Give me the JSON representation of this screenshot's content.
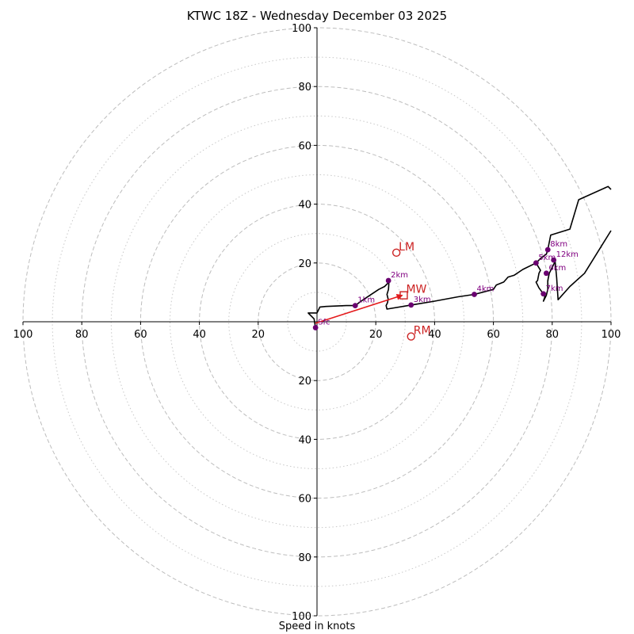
{
  "chart_data": {
    "type": "hodograph",
    "title": "KTWC 18Z - Wednesday December 03 2025",
    "xlabel": "Speed in knots",
    "axis_range": [
      -100,
      100
    ],
    "rings": [
      20,
      40,
      60,
      80,
      100
    ],
    "minor_rings": [
      10,
      30,
      50,
      70,
      90
    ],
    "x_ticks": [
      "100",
      "80",
      "60",
      "40",
      "20",
      "20",
      "40",
      "60",
      "80",
      "100"
    ],
    "y_ticks": [
      "100",
      "80",
      "60",
      "40",
      "20",
      "20",
      "40",
      "60",
      "80",
      "100"
    ],
    "hodograph": [
      [
        -0.5,
        -2
      ],
      [
        -1,
        1
      ],
      [
        -3,
        3
      ],
      [
        -2.5,
        3
      ],
      [
        0,
        3
      ],
      [
        1,
        5
      ],
      [
        3,
        5.2
      ],
      [
        10,
        5.5
      ],
      [
        13,
        5.5
      ],
      [
        15,
        7
      ],
      [
        18,
        9
      ],
      [
        21,
        11
      ],
      [
        23,
        12
      ],
      [
        24,
        13
      ],
      [
        24.5,
        14
      ],
      [
        24.3,
        11
      ],
      [
        23.8,
        9.3
      ],
      [
        24.2,
        7.7
      ],
      [
        24,
        6.5
      ],
      [
        23.5,
        5.5
      ],
      [
        23.8,
        4.3
      ],
      [
        32,
        5.7
      ],
      [
        40,
        7
      ],
      [
        48,
        8.5
      ],
      [
        53.5,
        9.3
      ],
      [
        60,
        11
      ],
      [
        61,
        12.5
      ],
      [
        63.5,
        13.5
      ],
      [
        65,
        15.2
      ],
      [
        67,
        15.8
      ],
      [
        70,
        17.8
      ],
      [
        74.5,
        20
      ],
      [
        76,
        21.5
      ],
      [
        78,
        23
      ],
      [
        78.5,
        24.5
      ],
      [
        79.5,
        29.5
      ],
      [
        86,
        31.5
      ],
      [
        89,
        41.5
      ],
      [
        99,
        46
      ],
      [
        100,
        45
      ]
    ],
    "hodograph_tail": [
      [
        74.5,
        20
      ],
      [
        76,
        17.5
      ],
      [
        75.5,
        16.5
      ],
      [
        75,
        14
      ],
      [
        74.5,
        13.5
      ],
      [
        75.5,
        11.5
      ],
      [
        77,
        9.5
      ],
      [
        77.5,
        8.5
      ],
      [
        77,
        7
      ],
      [
        78,
        9
      ],
      [
        78.5,
        11
      ],
      [
        78.5,
        14
      ],
      [
        79,
        16.5
      ],
      [
        81,
        20.5
      ],
      [
        81.5,
        15
      ],
      [
        82,
        7.5
      ],
      [
        86,
        12
      ],
      [
        91,
        16.5
      ],
      [
        100,
        31
      ]
    ],
    "height_markers": [
      {
        "label": "Sfc",
        "u": -0.5,
        "v": -2
      },
      {
        "label": "1km",
        "u": 13,
        "v": 5.5
      },
      {
        "label": "2km",
        "u": 24.3,
        "v": 14
      },
      {
        "label": "3km",
        "u": 32,
        "v": 5.7
      },
      {
        "label": "4km",
        "u": 53.5,
        "v": 9.3
      },
      {
        "label": "5km",
        "u": 74.5,
        "v": 20
      },
      {
        "label": "6km",
        "u": 78,
        "v": 16.5
      },
      {
        "label": "7km",
        "u": 77,
        "v": 9.5
      },
      {
        "label": "8km",
        "u": 78.5,
        "v": 24.5
      },
      {
        "label": "12km",
        "u": 80.5,
        "v": 21
      }
    ],
    "storm_motion": [
      {
        "label": "LM",
        "u": 27,
        "v": 23.5,
        "marker": "circle"
      },
      {
        "label": "MW",
        "u": 29.5,
        "v": 9,
        "marker": "square"
      },
      {
        "label": "RM",
        "u": 32,
        "v": -5,
        "marker": "circle"
      }
    ],
    "shear_vector": {
      "from": [
        -0.5,
        -0.5
      ],
      "to": [
        29,
        9
      ]
    }
  }
}
